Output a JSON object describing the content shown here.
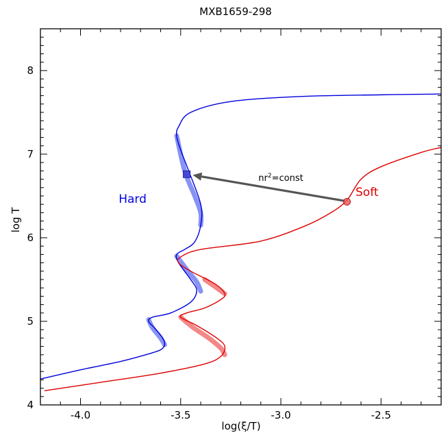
{
  "chart_data": {
    "type": "line",
    "title": "MXB1659-298",
    "xlabel": "log(ξ/T)",
    "ylabel": "log T",
    "xlim": [
      -4.2,
      -2.2
    ],
    "ylim": [
      4.0,
      8.5
    ],
    "xticks": [
      "-4.0",
      "-3.5",
      "-3.0",
      "-2.5"
    ],
    "xtick_values": [
      -4.0,
      -3.5,
      -3.0,
      -2.5
    ],
    "yticks": [
      "4",
      "5",
      "6",
      "7",
      "8"
    ],
    "ytick_values": [
      4,
      5,
      6,
      7,
      8
    ],
    "grid": false,
    "series": [
      {
        "name": "Hard",
        "color": "#0000dd",
        "x": [
          -4.2,
          -4.0,
          -3.8,
          -3.66,
          -3.6,
          -3.58,
          -3.59,
          -3.63,
          -3.66,
          -3.64,
          -3.55,
          -3.45,
          -3.42,
          -3.45,
          -3.51,
          -3.52,
          -3.48,
          -3.43,
          -3.4,
          -3.4,
          -3.46,
          -3.5,
          -3.52,
          -3.51,
          -3.45,
          -3.25,
          -2.9,
          -2.5,
          -2.2
        ],
        "y": [
          4.31,
          4.42,
          4.52,
          4.61,
          4.66,
          4.72,
          4.8,
          4.92,
          5.0,
          5.05,
          5.1,
          5.23,
          5.37,
          5.5,
          5.7,
          5.8,
          5.86,
          5.95,
          6.15,
          6.4,
          6.8,
          7.05,
          7.22,
          7.33,
          7.5,
          7.63,
          7.69,
          7.71,
          7.72
        ]
      },
      {
        "name": "Soft",
        "color": "#dd0000",
        "x": [
          -4.18,
          -3.9,
          -3.6,
          -3.38,
          -3.3,
          -3.28,
          -3.32,
          -3.42,
          -3.5,
          -3.47,
          -3.38,
          -3.3,
          -3.28,
          -3.33,
          -3.45,
          -3.51,
          -3.5,
          -3.4,
          -3.1,
          -2.88,
          -2.75,
          -2.67,
          -2.6,
          -2.5,
          -2.3,
          -2.2
        ],
        "y": [
          4.17,
          4.27,
          4.38,
          4.49,
          4.58,
          4.7,
          4.8,
          4.95,
          5.05,
          5.1,
          5.16,
          5.26,
          5.33,
          5.45,
          5.6,
          5.7,
          5.77,
          5.86,
          5.96,
          6.14,
          6.3,
          6.45,
          6.7,
          6.85,
          7.02,
          7.08
        ]
      }
    ],
    "highlights": {
      "hard": [
        {
          "x": [
            -3.52,
            -3.48,
            -3.43,
            -3.4,
            -3.4
          ],
          "y": [
            7.22,
            6.8,
            6.5,
            6.3,
            6.15
          ]
        },
        {
          "x": [
            -3.52,
            -3.47,
            -3.42,
            -3.4
          ],
          "y": [
            5.78,
            5.62,
            5.47,
            5.36
          ]
        },
        {
          "x": [
            -3.66,
            -3.64,
            -3.6,
            -3.58
          ],
          "y": [
            5.02,
            4.92,
            4.8,
            4.72
          ]
        }
      ],
      "soft": [
        {
          "x": [
            -3.38,
            -3.32,
            -3.28
          ],
          "y": [
            5.5,
            5.4,
            5.33
          ]
        },
        {
          "x": [
            -3.5,
            -3.44,
            -3.36,
            -3.3,
            -3.28
          ],
          "y": [
            5.05,
            4.93,
            4.8,
            4.68,
            4.6
          ]
        }
      ]
    },
    "markers": {
      "square": {
        "x": -3.47,
        "y": 6.76,
        "color": "#3333cc"
      },
      "circle": {
        "x": -2.67,
        "y": 6.43,
        "color": "#ee5555"
      }
    },
    "arrow": {
      "from": {
        "x": -2.68,
        "y": 6.44
      },
      "to": {
        "x": -3.44,
        "y": 6.75
      },
      "label": "nr",
      "label_sup": "2",
      "label_suffix": "=const",
      "label_x": -3.0,
      "label_y": 6.68
    },
    "series_labels": [
      {
        "text": "Hard",
        "x": -3.74,
        "y": 6.42,
        "color": "#0000dd"
      },
      {
        "text": "Soft",
        "x": -2.57,
        "y": 6.5,
        "color": "#dd0000"
      }
    ]
  }
}
